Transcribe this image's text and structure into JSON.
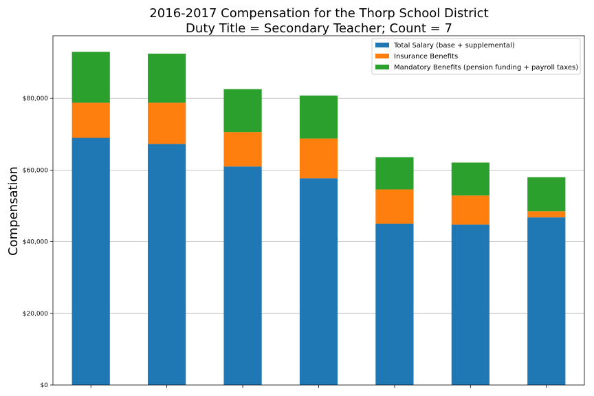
{
  "chart_data": {
    "type": "bar",
    "stacked": true,
    "title": "2016-2017 Compensation for the Thorp School District",
    "subtitle": "Duty Title = Secondary Teacher; Count = 7",
    "xlabel": "",
    "ylabel": "Compensation",
    "ylim": [
      0,
      97500
    ],
    "yticks": [
      0,
      20000,
      40000,
      60000,
      80000
    ],
    "ytick_labels": [
      "$0",
      "$20,000",
      "$40,000",
      "$60,000",
      "$80,000"
    ],
    "grid": "horizontal",
    "legend_position": "top-right",
    "categories": [
      "",
      "",
      "",
      "",
      "",
      "",
      ""
    ],
    "series": [
      {
        "name": "Total Salary (base + supplemental)",
        "color": "#1f77b4",
        "values": [
          69000,
          67300,
          61000,
          57700,
          45000,
          44800,
          46800
        ]
      },
      {
        "name": "Insurance Benefits",
        "color": "#ff7f0e",
        "values": [
          9800,
          11500,
          9600,
          11100,
          9600,
          8100,
          1700
        ]
      },
      {
        "name": "Mandatory Benefits (pension funding + payroll taxes)",
        "color": "#2ca02c",
        "values": [
          14200,
          13700,
          12000,
          12000,
          9000,
          9200,
          9500
        ]
      }
    ]
  }
}
